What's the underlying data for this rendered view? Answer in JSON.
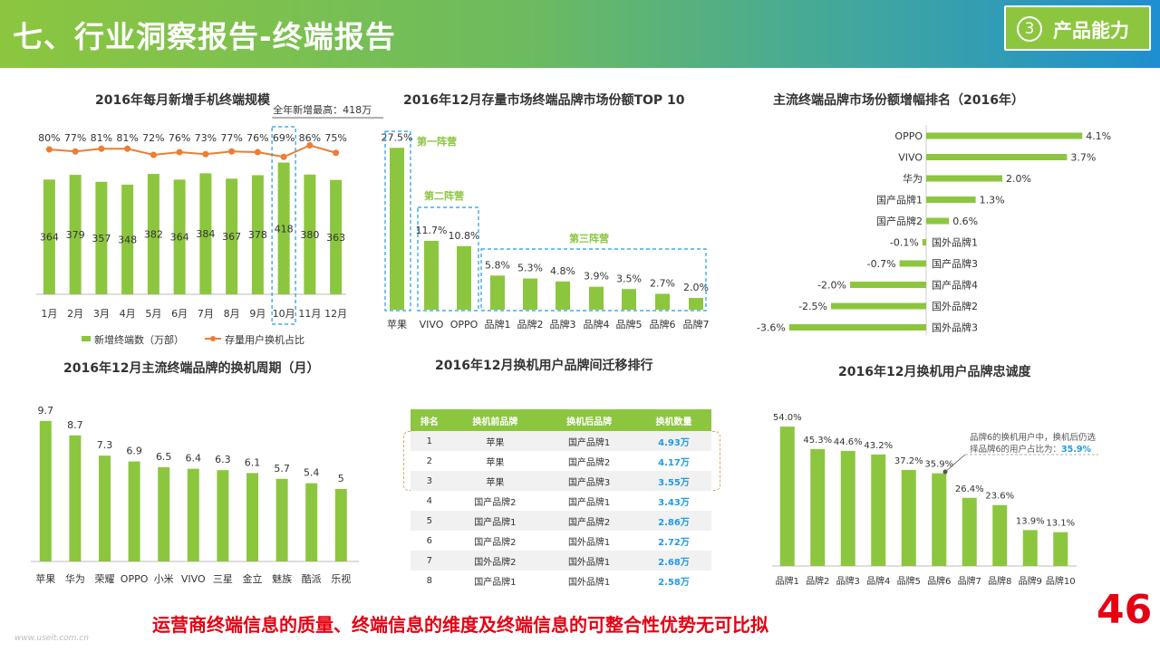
{
  "header": {
    "title": "七、行业洞察报告-终端报告",
    "badge_num": "3",
    "badge_label": "产品能力"
  },
  "footer": {
    "text": "运营商终端信息的质量、终端信息的维度及终端信息的可整合性优势无可比拟",
    "page": "46",
    "watermark": "www.useit.com.cn"
  },
  "colors": {
    "bar": "#8cc63f",
    "line": "#ed7d31",
    "dash": "#1e9be8",
    "value_blue": "#1e9be8",
    "red": "#e60012"
  },
  "chart_data": [
    {
      "id": "monthly",
      "type": "bar",
      "title": "2016年每月新增手机终端规模",
      "categories": [
        "1月",
        "2月",
        "3月",
        "4月",
        "5月",
        "6月",
        "7月",
        "8月",
        "9月",
        "10月",
        "11月",
        "12月"
      ],
      "series": [
        {
          "name": "新增终端数（万部）",
          "type": "bar",
          "values": [
            364,
            379,
            357,
            348,
            382,
            364,
            384,
            367,
            378,
            418,
            380,
            363
          ]
        },
        {
          "name": "存量用户换机占比",
          "type": "line",
          "values": [
            80,
            77,
            81,
            81,
            72,
            76,
            73,
            77,
            76,
            69,
            86,
            75
          ],
          "labels": [
            "80%",
            "77%",
            "81%",
            "81%",
            "72%",
            "76%",
            "73%",
            "77%",
            "76%",
            "69%",
            "86%",
            "75%"
          ]
        }
      ],
      "annotation": "全年新增最高：418万"
    },
    {
      "id": "share",
      "type": "bar",
      "title": "2016年12月存量市场终端品牌市场份额TOP 10",
      "categories": [
        "苹果",
        "VIVO",
        "OPPO",
        "品牌1",
        "品牌2",
        "品牌3",
        "品牌4",
        "品牌5",
        "品牌6",
        "品牌7"
      ],
      "values": [
        27.5,
        11.7,
        10.8,
        5.8,
        5.3,
        4.8,
        3.9,
        3.5,
        2.7,
        2.0
      ],
      "labels": [
        "27.5%",
        "11.7%",
        "10.8%",
        "5.8%",
        "5.3%",
        "4.8%",
        "3.9%",
        "3.5%",
        "2.7%",
        "2.0%"
      ],
      "groups": [
        {
          "label": "第一阵营"
        },
        {
          "label": "第二阵营"
        },
        {
          "label": "第三阵营"
        }
      ]
    },
    {
      "id": "growth",
      "type": "bar",
      "title": "主流终端品牌市场份额增幅排名（2016年）",
      "categories": [
        "OPPO",
        "VIVO",
        "华为",
        "国产品牌1",
        "国产品牌2",
        "国外品牌1",
        "国产品牌3",
        "国产品牌4",
        "国外品牌2",
        "国外品牌3"
      ],
      "values": [
        4.1,
        3.7,
        2.0,
        1.3,
        0.6,
        -0.1,
        -0.7,
        -2.0,
        -2.5,
        -3.6
      ],
      "labels": [
        "4.1%",
        "3.7%",
        "2.0%",
        "1.3%",
        "0.6%",
        "-0.1%",
        "-0.7%",
        "-2.0%",
        "-2.5%",
        "-3.6%"
      ]
    },
    {
      "id": "cycle",
      "type": "bar",
      "title": "2016年12月主流终端品牌的换机周期（月）",
      "categories": [
        "苹果",
        "华为",
        "荣耀",
        "OPPO",
        "小米",
        "VIVO",
        "三星",
        "金立",
        "魅族",
        "酷派",
        "乐视"
      ],
      "values": [
        9.7,
        8.7,
        7.3,
        6.9,
        6.5,
        6.4,
        6.3,
        6.1,
        5.7,
        5.4,
        5
      ],
      "labels": [
        "9.7",
        "8.7",
        "7.3",
        "6.9",
        "6.5",
        "6.4",
        "6.3",
        "6.1",
        "5.7",
        "5.4",
        "5"
      ]
    },
    {
      "id": "migration",
      "type": "table",
      "title": "2016年12月换机用户品牌间迁移排行",
      "columns": [
        "排名",
        "换机前品牌",
        "换机后品牌",
        "换机数量"
      ],
      "rows": [
        [
          "1",
          "苹果",
          "国产品牌1",
          "4.93万"
        ],
        [
          "2",
          "苹果",
          "国产品牌2",
          "4.17万"
        ],
        [
          "3",
          "苹果",
          "国产品牌3",
          "3.55万"
        ],
        [
          "4",
          "国产品牌2",
          "国产品牌1",
          "3.43万"
        ],
        [
          "5",
          "国产品牌1",
          "国产品牌2",
          "2.86万"
        ],
        [
          "6",
          "国产品牌2",
          "国外品牌1",
          "2.72万"
        ],
        [
          "7",
          "国外品牌2",
          "国外品牌1",
          "2.68万"
        ],
        [
          "8",
          "国产品牌1",
          "国外品牌1",
          "2.58万"
        ]
      ]
    },
    {
      "id": "loyalty",
      "type": "bar",
      "title": "2016年12月换机用户品牌忠诚度",
      "categories": [
        "品牌1",
        "品牌2",
        "品牌3",
        "品牌4",
        "品牌5",
        "品牌6",
        "品牌7",
        "品牌8",
        "品牌9",
        "品牌10"
      ],
      "values": [
        54.0,
        45.3,
        44.6,
        43.2,
        37.2,
        35.9,
        26.4,
        23.6,
        13.9,
        13.1
      ],
      "labels": [
        "54.0%",
        "45.3%",
        "44.6%",
        "43.2%",
        "37.2%",
        "35.9%",
        "26.4%",
        "23.6%",
        "13.9%",
        "13.1%"
      ],
      "annotation": {
        "line1": "品牌6的换机用户中，换机后仍选",
        "line2": "择品牌6的用户占比为：",
        "value": "35.9%"
      }
    }
  ]
}
